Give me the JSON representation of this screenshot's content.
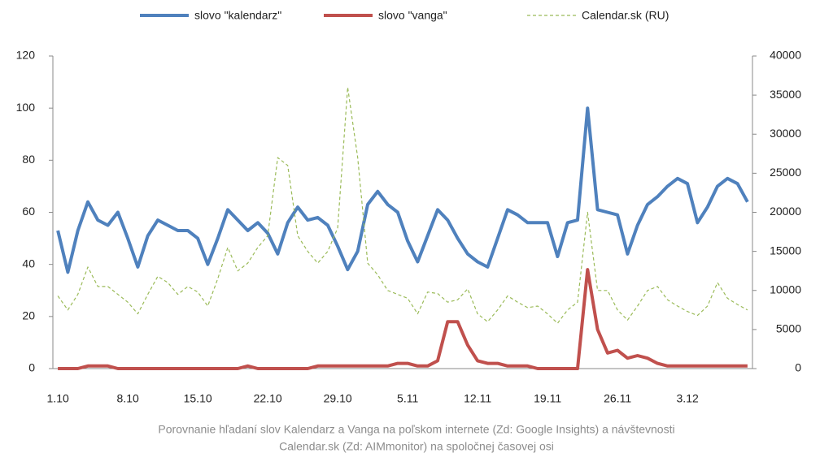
{
  "chart_data": {
    "type": "line",
    "categories": [
      "1.10",
      null,
      null,
      null,
      null,
      null,
      null,
      "8.10",
      null,
      null,
      null,
      null,
      null,
      null,
      "15.10",
      null,
      null,
      null,
      null,
      null,
      null,
      "22.10",
      null,
      null,
      null,
      null,
      null,
      null,
      "29.10",
      null,
      null,
      null,
      null,
      null,
      null,
      "5.11",
      null,
      null,
      null,
      null,
      null,
      null,
      "12.11",
      null,
      null,
      null,
      null,
      null,
      null,
      "19.11",
      null,
      null,
      null,
      null,
      null,
      null,
      "26.11",
      null,
      null,
      null,
      null,
      null,
      null,
      "3.12",
      null,
      null,
      null,
      null,
      null,
      null
    ],
    "series": [
      {
        "name": "slovo \"kalendarz\"",
        "color": "#4f81bd",
        "values": [
          53,
          37,
          53,
          64,
          57,
          55,
          60,
          50,
          39,
          51,
          57,
          55,
          53,
          53,
          50,
          40,
          50,
          61,
          57,
          53,
          56,
          52,
          44,
          56,
          62,
          57,
          58,
          55,
          47,
          38,
          45,
          63,
          68,
          63,
          60,
          49,
          41,
          51,
          61,
          57,
          50,
          44,
          41,
          39,
          50,
          61,
          59,
          56,
          56,
          56,
          43,
          56,
          57,
          100,
          61,
          60,
          59,
          44,
          55,
          63,
          66,
          70,
          73,
          71,
          56,
          62,
          70,
          73,
          71,
          64
        ]
      },
      {
        "name": "slovo \"vanga\"",
        "color": "#c0504d",
        "values": [
          0,
          0,
          0,
          1,
          1,
          1,
          0,
          0,
          0,
          0,
          0,
          0,
          0,
          0,
          0,
          0,
          0,
          0,
          0,
          1,
          0,
          0,
          0,
          0,
          0,
          0,
          1,
          1,
          1,
          1,
          1,
          1,
          1,
          1,
          2,
          2,
          1,
          1,
          3,
          18,
          18,
          9,
          3,
          2,
          2,
          1,
          1,
          1,
          0,
          0,
          0,
          0,
          0,
          38,
          15,
          6,
          7,
          4,
          5,
          4,
          2,
          1,
          1,
          1,
          1,
          1,
          1,
          1,
          1,
          1
        ]
      },
      {
        "name": "Calendar.sk (RU)",
        "color": "#9bbb59",
        "axis": "y2",
        "dashed": true,
        "values": [
          9300,
          7500,
          9500,
          13000,
          10500,
          10500,
          9500,
          8500,
          7000,
          9500,
          11800,
          11000,
          9500,
          10500,
          9800,
          8000,
          11500,
          15500,
          12500,
          13500,
          15500,
          17000,
          27000,
          26000,
          17000,
          15000,
          13500,
          15000,
          18000,
          36000,
          27000,
          13500,
          12000,
          10000,
          9500,
          9000,
          7000,
          9800,
          9600,
          8500,
          8800,
          10200,
          7000,
          6000,
          7500,
          9300,
          8500,
          7800,
          8000,
          7000,
          5800,
          7500,
          8500,
          20000,
          10000,
          10000,
          7500,
          6200,
          8000,
          10000,
          10500,
          8800,
          8000,
          7300,
          6800,
          8000,
          11000,
          9000,
          8200,
          7500
        ]
      }
    ],
    "ylim": [
      0,
      120
    ],
    "yticks": [
      0,
      20,
      40,
      60,
      80,
      100,
      120
    ],
    "y2lim": [
      0,
      40000
    ],
    "y2ticks": [
      0,
      5000,
      10000,
      15000,
      20000,
      25000,
      30000,
      35000,
      40000
    ],
    "legend": "top",
    "caption": [
      "Porovnanie hľadaní slov Kalendarz a Vanga na poľskom internete (Zd: Google Insights) a návštevnosti",
      "Calendar.sk (Zd: AIMmonitor) na spoločnej časovej osi"
    ]
  }
}
